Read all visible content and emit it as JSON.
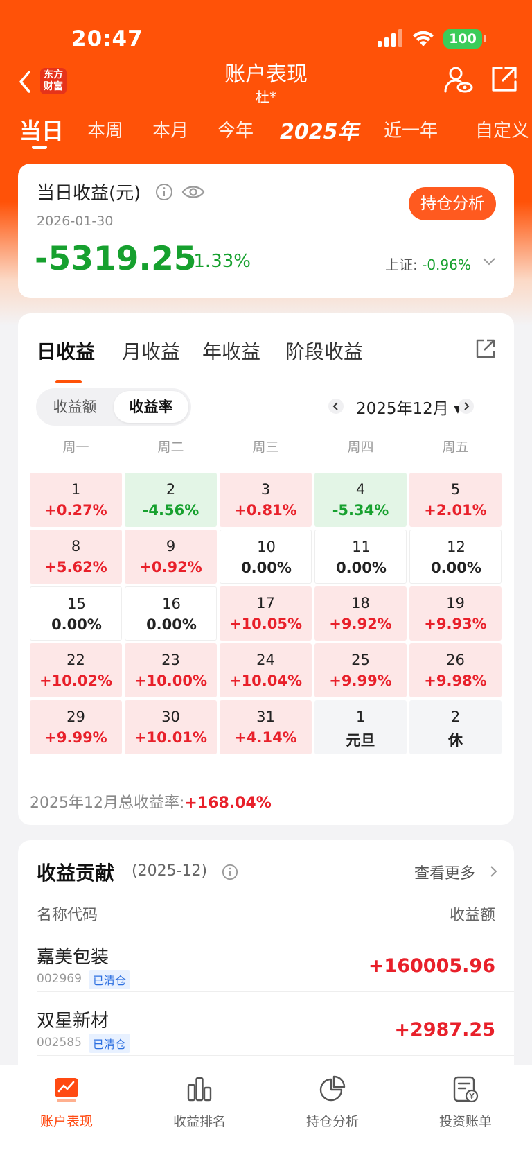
{
  "status": {
    "time": "20:47",
    "battery": "100"
  },
  "nav": {
    "title": "账户表现",
    "subtitle": "杜*",
    "logo_line1": "东方",
    "logo_line2": "财富"
  },
  "period_tabs": [
    "当日",
    "本周",
    "本月",
    "今年",
    "2025年",
    "近一年",
    "自定义"
  ],
  "today": {
    "label": "当日收益(元)",
    "date": "2026-01-30",
    "value": "-5319.25",
    "pct": "-1.33%",
    "index_label": "上证:",
    "index_value": "-0.96%",
    "hold_button": "持仓分析"
  },
  "calendar": {
    "tabs": [
      "日收益",
      "月收益",
      "年收益",
      "阶段收益"
    ],
    "segment": [
      "收益额",
      "收益率"
    ],
    "month": "2025年12月",
    "weekdays": [
      "周一",
      "周二",
      "周三",
      "周四",
      "周五"
    ],
    "cells": [
      {
        "day": "1",
        "value": "+0.27%",
        "state": "up"
      },
      {
        "day": "2",
        "value": "-4.56%",
        "state": "down"
      },
      {
        "day": "3",
        "value": "+0.81%",
        "state": "up"
      },
      {
        "day": "4",
        "value": "-5.34%",
        "state": "down"
      },
      {
        "day": "5",
        "value": "+2.01%",
        "state": "up"
      },
      {
        "day": "8",
        "value": "+5.62%",
        "state": "up"
      },
      {
        "day": "9",
        "value": "+0.92%",
        "state": "up"
      },
      {
        "day": "10",
        "value": "0.00%",
        "state": "flat"
      },
      {
        "day": "11",
        "value": "0.00%",
        "state": "flat"
      },
      {
        "day": "12",
        "value": "0.00%",
        "state": "flat"
      },
      {
        "day": "15",
        "value": "0.00%",
        "state": "flat"
      },
      {
        "day": "16",
        "value": "0.00%",
        "state": "flat"
      },
      {
        "day": "17",
        "value": "+10.05%",
        "state": "up"
      },
      {
        "day": "18",
        "value": "+9.92%",
        "state": "up"
      },
      {
        "day": "19",
        "value": "+9.93%",
        "state": "up"
      },
      {
        "day": "22",
        "value": "+10.02%",
        "state": "up"
      },
      {
        "day": "23",
        "value": "+10.00%",
        "state": "up"
      },
      {
        "day": "24",
        "value": "+10.04%",
        "state": "up"
      },
      {
        "day": "25",
        "value": "+9.99%",
        "state": "up"
      },
      {
        "day": "26",
        "value": "+9.98%",
        "state": "up"
      },
      {
        "day": "29",
        "value": "+9.99%",
        "state": "up"
      },
      {
        "day": "30",
        "value": "+10.01%",
        "state": "up"
      },
      {
        "day": "31",
        "value": "+4.14%",
        "state": "up"
      },
      {
        "day": "1",
        "value": "元旦",
        "state": "hol"
      },
      {
        "day": "2",
        "value": "休",
        "state": "hol"
      }
    ],
    "total_label": "2025年12月总收益率:",
    "total_value": "+168.04%"
  },
  "contrib": {
    "title": "收益贡献",
    "period": "(2025-12)",
    "more": "查看更多",
    "col_left": "名称代码",
    "col_right": "收益额",
    "rows": [
      {
        "name": "嘉美包装",
        "code": "002969",
        "tag": "已清仓",
        "amount": "+160005.96"
      },
      {
        "name": "双星新材",
        "code": "002585",
        "tag": "已清仓",
        "amount": "+2987.25"
      }
    ]
  },
  "bottom_nav": [
    "账户表现",
    "收益排名",
    "持仓分析",
    "投资账单"
  ],
  "colors": {
    "brand": "#ff5208",
    "up": "#e8202a",
    "down": "#16a02e",
    "tag_blue": "#2c6fe0"
  }
}
